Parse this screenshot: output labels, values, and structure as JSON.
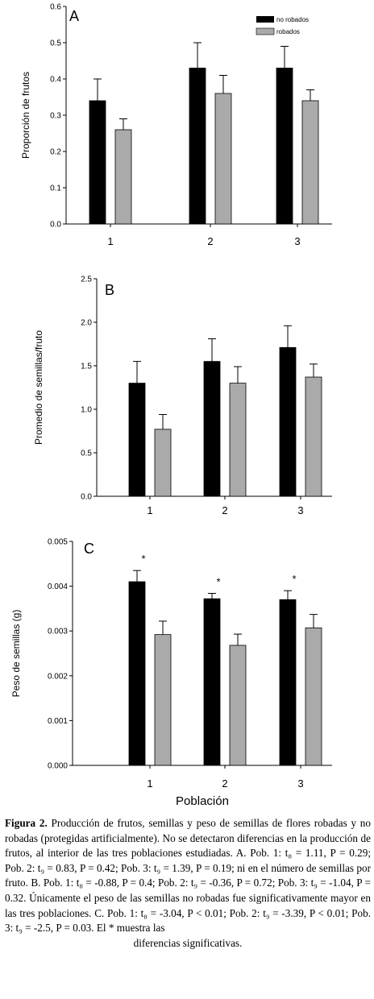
{
  "colors": {
    "no_robados": "#000000",
    "robados": "#aaaaaa",
    "axis": "#000000"
  },
  "legend": {
    "no_robados": "no robados",
    "robados": "robados"
  },
  "xlabel": "Población",
  "chart_data": [
    {
      "type": "bar",
      "panel": "A",
      "ylabel": "Proporción de frutos",
      "categories": [
        "1",
        "2",
        "3"
      ],
      "ylim": [
        0,
        0.6
      ],
      "yticks": [
        "0.0",
        "0.1",
        "0.2",
        "0.3",
        "0.4",
        "0.5",
        "0.6"
      ],
      "series": [
        {
          "name": "no robados",
          "values": [
            0.34,
            0.43,
            0.43
          ],
          "errors": [
            0.06,
            0.07,
            0.06
          ]
        },
        {
          "name": "robados",
          "values": [
            0.26,
            0.36,
            0.34
          ],
          "errors": [
            0.03,
            0.05,
            0.03
          ]
        }
      ],
      "annotations": []
    },
    {
      "type": "bar",
      "panel": "B",
      "ylabel": "Promedio de semillas/fruto",
      "categories": [
        "1",
        "2",
        "3"
      ],
      "ylim": [
        0,
        2.5
      ],
      "yticks": [
        "0.0",
        "0.5",
        "1.0",
        "1.5",
        "2.0",
        "2.5"
      ],
      "series": [
        {
          "name": "no robados",
          "values": [
            1.3,
            1.55,
            1.71
          ],
          "errors": [
            0.25,
            0.26,
            0.25
          ]
        },
        {
          "name": "robados",
          "values": [
            0.77,
            1.3,
            1.37
          ],
          "errors": [
            0.17,
            0.19,
            0.15
          ]
        }
      ],
      "annotations": []
    },
    {
      "type": "bar",
      "panel": "C",
      "ylabel": "Peso de semillas (g)",
      "categories": [
        "1",
        "2",
        "3"
      ],
      "ylim": [
        0,
        0.005
      ],
      "yticks": [
        "0.000",
        "0.001",
        "0.002",
        "0.003",
        "0.004",
        "0.005"
      ],
      "series": [
        {
          "name": "no robados",
          "values": [
            0.0041,
            0.00372,
            0.0037
          ],
          "errors": [
            0.00025,
            0.00012,
            0.0002
          ]
        },
        {
          "name": "robados",
          "values": [
            0.00292,
            0.00268,
            0.00307
          ],
          "errors": [
            0.0003,
            0.00025,
            0.0003
          ]
        }
      ],
      "annotations": [
        "*",
        "*",
        "*"
      ]
    }
  ],
  "caption": {
    "fig_label": "Figura 2.",
    "text": " Producción de frutos, semillas y peso de semillas de flores robadas y no robadas (protegidas artificialmente). No se detectaron diferencias en la producción de frutos, al interior de las tres poblaciones estudiadas. A. Pob. 1: t₈ = 1.11, P = 0.29; Pob. 2: t₉ = 0.83, P = 0.42; Pob. 3: t₉ = 1.39, P = 0.19; ni en el número de semillas por fruto. B. Pob. 1: t₈ = -0.88, P = 0.4; Pob. 2: t₉ = -0.36, P = 0.72; Pob. 3: t₉ = -1.04, P = 0.32. Únicamente el peso de las semillas no robadas fue significativamente mayor en las tres poblaciones. C. Pob. 1: t₈ = -3.04, P < 0.01; Pob. 2: t₉ = -3.39, P < 0.01; Pob. 3: t₉ = -2.5, P = 0.03. El * muestra las",
    "last_line": "diferencias significativas."
  }
}
